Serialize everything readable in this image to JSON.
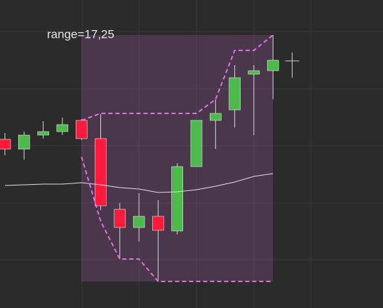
{
  "chart_data": {
    "type": "candlestick",
    "annotation": "range=17,25",
    "categories": [
      null,
      null,
      null,
      null,
      null,
      null,
      null,
      null,
      null,
      null,
      null,
      null,
      null,
      null,
      null,
      null
    ],
    "open": [
      241,
      227,
      247,
      252,
      268,
      242,
      141,
      115,
      131,
      110,
      202,
      268,
      283,
      334,
      339,
      353
    ],
    "high": [
      250,
      252,
      267,
      272,
      270,
      277,
      150,
      164,
      154,
      207,
      268,
      298,
      347,
      347,
      390,
      365
    ],
    "low": [
      218,
      212,
      242,
      247,
      240,
      140,
      70,
      95,
      38,
      105,
      202,
      227,
      258,
      247,
      298,
      329
    ],
    "close": [
      227,
      247,
      252,
      262,
      242,
      146,
      115,
      131,
      111,
      202,
      268,
      278,
      329,
      339,
      354,
      353
    ],
    "up_color": "#4cbb4c",
    "down_color": "#ff1a3c",
    "doji_color": "#cfcfcf",
    "series": [
      {
        "color": "#e0e0e0",
        "dash": false,
        "values": [
          175,
          176,
          177,
          177,
          179,
          176,
          172,
          170,
          165,
          166,
          169,
          174,
          180,
          188,
          192,
          null
        ]
      },
      {
        "color": "#e070e0",
        "dash": true,
        "values": [
          null,
          null,
          null,
          null,
          268,
          278,
          278,
          278,
          278,
          278,
          278,
          298,
          368,
          368,
          390,
          null
        ]
      },
      {
        "color": "#e070e0",
        "dash": true,
        "values": [
          null,
          null,
          null,
          null,
          216,
          124,
          70,
          70,
          38,
          38,
          38,
          38,
          38,
          38,
          38,
          null
        ]
      }
    ],
    "ylim": [
      0,
      440
    ]
  }
}
